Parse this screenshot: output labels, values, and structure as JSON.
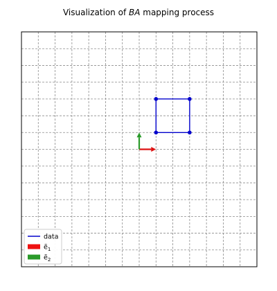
{
  "chart_data": {
    "type": "line",
    "title_pre": "Visualization of ",
    "title_ital": "BA",
    "title_post": " mapping process",
    "xlim": [
      -7,
      7
    ],
    "ylim": [
      -7,
      7
    ],
    "grid": true,
    "grid_style": "dashed",
    "grid_step": 1,
    "show_ticks": false,
    "legend_position": "lower-left",
    "series": [
      {
        "name": "data",
        "color": "#0000cc",
        "x": [
          1,
          3,
          3,
          1,
          1
        ],
        "y": [
          1,
          1,
          3,
          3,
          1
        ]
      }
    ],
    "vectors": [
      {
        "name": "ẽ1",
        "color": "#dd1111",
        "x": 1,
        "y": 0
      },
      {
        "name": "ẽ2",
        "color": "#2a9a2a",
        "x": 0,
        "y": 1
      }
    ],
    "legend": [
      {
        "label": "data",
        "kind": "line",
        "color": "#0000cc"
      },
      {
        "label_main": "ẽ",
        "label_sub": "1",
        "kind": "patch",
        "color": "#ee1111"
      },
      {
        "label_main": "ẽ",
        "label_sub": "2",
        "kind": "patch",
        "color": "#2a9a2a"
      }
    ]
  }
}
